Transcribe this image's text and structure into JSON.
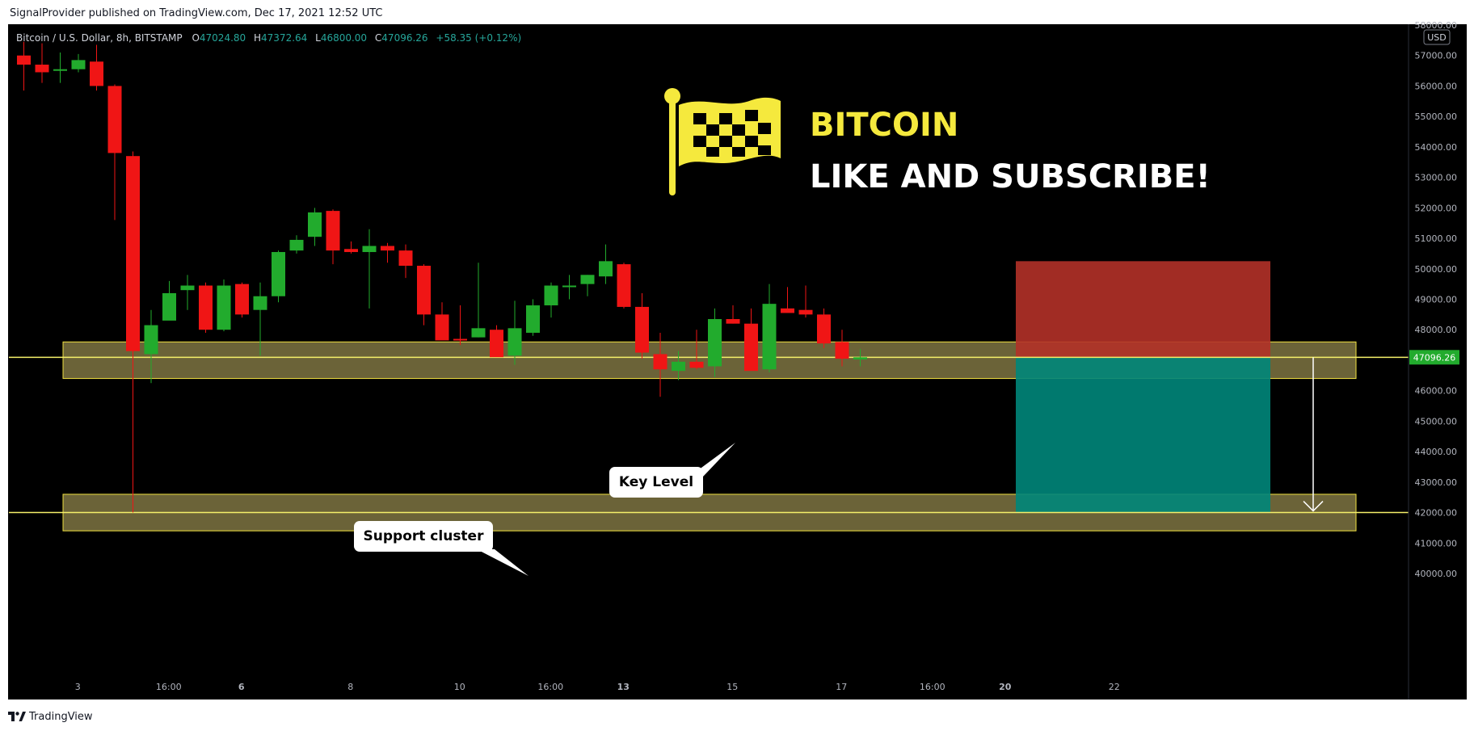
{
  "header": {
    "published_line": "SignalProvider published on TradingView.com, Dec 17, 2021 12:52 UTC"
  },
  "legend": {
    "symbol": "Bitcoin / U.S. Dollar, 8h, BITSTAMP",
    "o_label": "O",
    "o_value": "47024.80",
    "h_label": "H",
    "h_value": "47372.64",
    "l_label": "L",
    "l_value": "46800.00",
    "c_label": "C",
    "c_value": "47096.26",
    "change": "+58.35 (+0.12%)"
  },
  "overlay": {
    "title": "BITCOIN",
    "subtitle": "LIKE AND SUBSCRIBE!",
    "flag_icon": "checkered-flag-icon"
  },
  "annotations": {
    "key_level": "Key Level",
    "support_cluster": "Support cluster"
  },
  "price_axis": {
    "currency": "USD",
    "current_price": "47096.26"
  },
  "footer": {
    "brand": "TradingView"
  },
  "colors": {
    "background": "#000000",
    "bull": "#22ab2d",
    "bear": "#f01515",
    "zone_fill": "#6b6338",
    "zone_border": "#f0e040",
    "level_line": "#f5f06a",
    "stop_zone": "#b33128",
    "target_zone": "#00867a",
    "price_tag": "#22ab2d",
    "title_yellow": "#f5e93d"
  },
  "chart_data": {
    "type": "candlestick",
    "symbol": "Bitcoin / U.S. Dollar",
    "interval": "8h",
    "exchange": "BITSTAMP",
    "currency": "USD",
    "ylim": [
      39700,
      58000
    ],
    "y_ticks": [
      40000,
      41000,
      42000,
      43000,
      44000,
      45000,
      46000,
      47000,
      48000,
      49000,
      50000,
      51000,
      52000,
      53000,
      54000,
      55000,
      56000,
      57000,
      58000
    ],
    "y_tick_labels": [
      "40000.00",
      "41000.00",
      "42000.00",
      "43000.00",
      "44000.00",
      "45000.00",
      "46000.00",
      "47000.00",
      "48000.00",
      "49000.00",
      "50000.00",
      "51000.00",
      "52000.00",
      "53000.00",
      "54000.00",
      "55000.00",
      "56000.00",
      "57000.00",
      "58000.00"
    ],
    "x_ticks": [
      {
        "label": "3",
        "bar": 3.5,
        "bold": false
      },
      {
        "label": "16:00",
        "bar": 8.5,
        "bold": false
      },
      {
        "label": "6",
        "bar": 12.5,
        "bold": true
      },
      {
        "label": "8",
        "bar": 18.5,
        "bold": false
      },
      {
        "label": "10",
        "bar": 24.5,
        "bold": false
      },
      {
        "label": "16:00",
        "bar": 29.5,
        "bold": false
      },
      {
        "label": "13",
        "bar": 33.5,
        "bold": true
      },
      {
        "label": "15",
        "bar": 39.5,
        "bold": false
      },
      {
        "label": "17",
        "bar": 45.5,
        "bold": false
      },
      {
        "label": "16:00",
        "bar": 50.5,
        "bold": false
      },
      {
        "label": "20",
        "bar": 54.5,
        "bold": true
      },
      {
        "label": "22",
        "bar": 60.5,
        "bold": false
      }
    ],
    "ohlc": [
      [
        57000,
        57450,
        55850,
        56700
      ],
      [
        56700,
        57400,
        56100,
        56450
      ],
      [
        56550,
        57100,
        56100,
        56550
      ],
      [
        56550,
        57050,
        56450,
        56850
      ],
      [
        56800,
        57350,
        55850,
        56000
      ],
      [
        56000,
        56050,
        51600,
        53800
      ],
      [
        53700,
        53850,
        42000,
        47300
      ],
      [
        47200,
        48650,
        46250,
        48150
      ],
      [
        48300,
        49600,
        48350,
        49200
      ],
      [
        49300,
        49800,
        48650,
        49450
      ],
      [
        49450,
        49550,
        47900,
        48000
      ],
      [
        48000,
        49650,
        47950,
        49450
      ],
      [
        49500,
        49550,
        48400,
        48500
      ],
      [
        48650,
        49550,
        47150,
        49100
      ],
      [
        49100,
        50600,
        48900,
        50550
      ],
      [
        50600,
        51100,
        50500,
        50950
      ],
      [
        51050,
        52000,
        50750,
        51850
      ],
      [
        51900,
        51950,
        50150,
        50600
      ],
      [
        50650,
        50900,
        50500,
        50550
      ],
      [
        50550,
        51300,
        48700,
        50750
      ],
      [
        50750,
        50850,
        50200,
        50600
      ],
      [
        50600,
        50800,
        49700,
        50100
      ],
      [
        50100,
        50150,
        48150,
        48500
      ],
      [
        48500,
        48900,
        47700,
        47650
      ],
      [
        47700,
        48800,
        47500,
        47650
      ],
      [
        47750,
        50200,
        47750,
        48050
      ],
      [
        48000,
        48150,
        47200,
        47100
      ],
      [
        47150,
        48950,
        46850,
        48050
      ],
      [
        47900,
        49000,
        47800,
        48800
      ],
      [
        48800,
        49550,
        48400,
        49450
      ],
      [
        49400,
        49800,
        49000,
        49450
      ],
      [
        49500,
        49800,
        49100,
        49800
      ],
      [
        49750,
        50800,
        49500,
        50250
      ],
      [
        50150,
        50200,
        48700,
        48750
      ],
      [
        48750,
        49200,
        47050,
        47250
      ],
      [
        47200,
        47900,
        45800,
        46700
      ],
      [
        46650,
        47300,
        46350,
        46950
      ],
      [
        46950,
        48000,
        46700,
        46750
      ],
      [
        46800,
        48700,
        46450,
        48350
      ],
      [
        48350,
        48800,
        48200,
        48200
      ],
      [
        48200,
        48700,
        46650,
        46650
      ],
      [
        46700,
        49500,
        46600,
        48850
      ],
      [
        48700,
        49400,
        48600,
        48550
      ],
      [
        48650,
        49450,
        48400,
        48500
      ],
      [
        48500,
        48700,
        47400,
        47550
      ],
      [
        47600,
        48000,
        46800,
        47050
      ],
      [
        47024.8,
        47372.64,
        46800,
        47096.26
      ]
    ],
    "horizontal_levels": [
      47096.26,
      42000
    ],
    "zones": [
      {
        "label": "Key Level",
        "from": 46400,
        "to": 47600
      },
      {
        "label": "Support cluster",
        "from": 41400,
        "to": 42600
      }
    ],
    "short_position": {
      "entry": 47096.26,
      "stop": 50250,
      "target": 42000
    }
  }
}
